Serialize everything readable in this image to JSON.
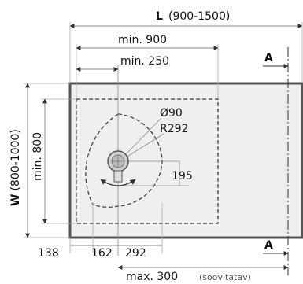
{
  "dimensions": {
    "length": {
      "prefix": "L",
      "range": "(900-1500)"
    },
    "width": {
      "prefix": "W",
      "range": "(800-1000)"
    },
    "min_900": "min. 900",
    "min_250": "min. 250",
    "min_800": "min. 800",
    "dia_90": "Ø90",
    "radius_292": "R292",
    "d_195": "195",
    "d_138": "138",
    "d_162": "162",
    "d_292": "292",
    "max_300": "max. 300",
    "recommended": "(soovitatav)"
  },
  "section_marker": "A",
  "colors": {
    "tray_fill": "#efefef",
    "tray_border": "#555555",
    "line": "#333333",
    "dim_line": "#888888"
  }
}
